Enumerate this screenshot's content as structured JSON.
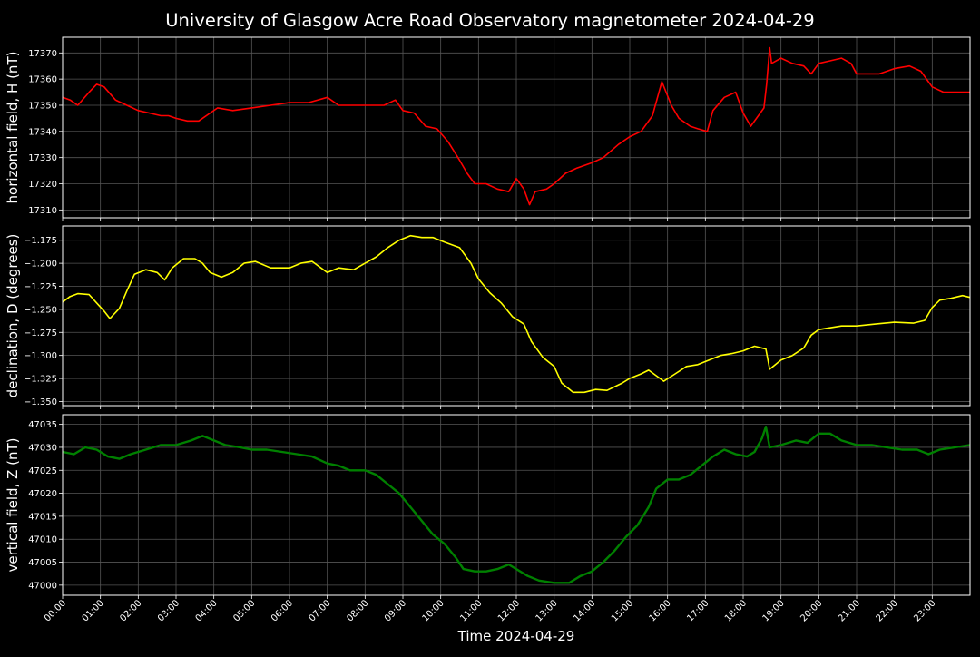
{
  "chart_data": {
    "type": "line",
    "title": "University of Glasgow Acre Road Observatory magnetometer 2024-04-29",
    "xlabel": "Time 2024-04-29",
    "x_unit": "hours",
    "xlim": [
      0,
      24
    ],
    "x_ticks": [
      {
        "value": 0,
        "label": "00:00"
      },
      {
        "value": 1,
        "label": "01:00"
      },
      {
        "value": 2,
        "label": "02:00"
      },
      {
        "value": 3,
        "label": "03:00"
      },
      {
        "value": 4,
        "label": "04:00"
      },
      {
        "value": 5,
        "label": "05:00"
      },
      {
        "value": 6,
        "label": "06:00"
      },
      {
        "value": 7,
        "label": "07:00"
      },
      {
        "value": 8,
        "label": "08:00"
      },
      {
        "value": 9,
        "label": "09:00"
      },
      {
        "value": 10,
        "label": "10:00"
      },
      {
        "value": 11,
        "label": "11:00"
      },
      {
        "value": 12,
        "label": "12:00"
      },
      {
        "value": 13,
        "label": "13:00"
      },
      {
        "value": 14,
        "label": "14:00"
      },
      {
        "value": 15,
        "label": "15:00"
      },
      {
        "value": 16,
        "label": "16:00"
      },
      {
        "value": 17,
        "label": "17:00"
      },
      {
        "value": 18,
        "label": "18:00"
      },
      {
        "value": 19,
        "label": "19:00"
      },
      {
        "value": 20,
        "label": "20:00"
      },
      {
        "value": 21,
        "label": "21:00"
      },
      {
        "value": 22,
        "label": "22:00"
      },
      {
        "value": 23,
        "label": "23:00"
      }
    ],
    "grid": true,
    "colors": {
      "background": "#000000",
      "foreground": "#ffffff",
      "grid": "#555555"
    },
    "panels": [
      {
        "ylabel": "horizontal field, H (nT)",
        "ylim": [
          17307,
          17376
        ],
        "yticks": [
          {
            "value": 17310,
            "label": "17310"
          },
          {
            "value": 17320,
            "label": "17320"
          },
          {
            "value": 17330,
            "label": "17330"
          },
          {
            "value": 17340,
            "label": "17340"
          },
          {
            "value": 17350,
            "label": "17350"
          },
          {
            "value": 17360,
            "label": "17360"
          },
          {
            "value": 17370,
            "label": "17370"
          }
        ],
        "color": "#ff0000",
        "points": [
          [
            0,
            17353
          ],
          [
            0.2,
            17352
          ],
          [
            0.4,
            17350
          ],
          [
            0.7,
            17355
          ],
          [
            0.9,
            17358
          ],
          [
            1.1,
            17357
          ],
          [
            1.4,
            17352
          ],
          [
            1.7,
            17350
          ],
          [
            2.0,
            17348
          ],
          [
            2.3,
            17347
          ],
          [
            2.6,
            17346
          ],
          [
            2.8,
            17346
          ],
          [
            3.0,
            17345
          ],
          [
            3.3,
            17344
          ],
          [
            3.6,
            17344
          ],
          [
            3.9,
            17347
          ],
          [
            4.1,
            17349
          ],
          [
            4.5,
            17348
          ],
          [
            5.0,
            17349
          ],
          [
            5.5,
            17350
          ],
          [
            6.0,
            17351
          ],
          [
            6.5,
            17351
          ],
          [
            7.0,
            17353
          ],
          [
            7.3,
            17350
          ],
          [
            7.6,
            17350
          ],
          [
            8.0,
            17350
          ],
          [
            8.5,
            17350
          ],
          [
            8.8,
            17352
          ],
          [
            9.0,
            17348
          ],
          [
            9.3,
            17347
          ],
          [
            9.6,
            17342
          ],
          [
            9.9,
            17341
          ],
          [
            10.2,
            17336
          ],
          [
            10.5,
            17329
          ],
          [
            10.7,
            17324
          ],
          [
            10.9,
            17320
          ],
          [
            11.2,
            17320
          ],
          [
            11.5,
            17318
          ],
          [
            11.8,
            17317
          ],
          [
            12.0,
            17322
          ],
          [
            12.2,
            17318
          ],
          [
            12.35,
            17312
          ],
          [
            12.5,
            17317
          ],
          [
            12.8,
            17318
          ],
          [
            13.0,
            17320
          ],
          [
            13.3,
            17324
          ],
          [
            13.6,
            17326
          ],
          [
            14.0,
            17328
          ],
          [
            14.3,
            17330
          ],
          [
            14.7,
            17335
          ],
          [
            15.0,
            17338
          ],
          [
            15.3,
            17340
          ],
          [
            15.6,
            17346
          ],
          [
            15.85,
            17359
          ],
          [
            16.1,
            17350
          ],
          [
            16.3,
            17345
          ],
          [
            16.6,
            17342
          ],
          [
            16.8,
            17341
          ],
          [
            17.05,
            17340
          ],
          [
            17.2,
            17348
          ],
          [
            17.5,
            17353
          ],
          [
            17.8,
            17355
          ],
          [
            18.0,
            17347
          ],
          [
            18.2,
            17342
          ],
          [
            18.4,
            17346
          ],
          [
            18.55,
            17349
          ],
          [
            18.62,
            17358
          ],
          [
            18.7,
            17372
          ],
          [
            18.75,
            17366
          ],
          [
            19.0,
            17368
          ],
          [
            19.3,
            17366
          ],
          [
            19.6,
            17365
          ],
          [
            19.8,
            17362
          ],
          [
            20.0,
            17366
          ],
          [
            20.3,
            17367
          ],
          [
            20.6,
            17368
          ],
          [
            20.85,
            17366
          ],
          [
            21.0,
            17362
          ],
          [
            21.3,
            17362
          ],
          [
            21.6,
            17362
          ],
          [
            22.0,
            17364
          ],
          [
            22.4,
            17365
          ],
          [
            22.7,
            17363
          ],
          [
            23.0,
            17357
          ],
          [
            23.3,
            17355
          ],
          [
            23.6,
            17355
          ],
          [
            24.0,
            17355
          ]
        ]
      },
      {
        "ylabel": "declination, D (degrees)",
        "ylim": [
          -1.3545,
          -1.1595
        ],
        "yticks": [
          {
            "value": -1.35,
            "label": "−1.350"
          },
          {
            "value": -1.325,
            "label": "−1.325"
          },
          {
            "value": -1.3,
            "label": "−1.300"
          },
          {
            "value": -1.275,
            "label": "−1.275"
          },
          {
            "value": -1.25,
            "label": "−1.250"
          },
          {
            "value": -1.225,
            "label": "−1.225"
          },
          {
            "value": -1.2,
            "label": "−1.200"
          },
          {
            "value": -1.175,
            "label": "−1.175"
          }
        ],
        "color": "#ffff00",
        "points": [
          [
            0,
            -1.242
          ],
          [
            0.2,
            -1.236
          ],
          [
            0.4,
            -1.233
          ],
          [
            0.7,
            -1.234
          ],
          [
            0.9,
            -1.243
          ],
          [
            1.1,
            -1.252
          ],
          [
            1.25,
            -1.26
          ],
          [
            1.5,
            -1.249
          ],
          [
            1.7,
            -1.23
          ],
          [
            1.9,
            -1.212
          ],
          [
            2.2,
            -1.207
          ],
          [
            2.5,
            -1.21
          ],
          [
            2.7,
            -1.218
          ],
          [
            2.9,
            -1.205
          ],
          [
            3.2,
            -1.195
          ],
          [
            3.5,
            -1.195
          ],
          [
            3.7,
            -1.2
          ],
          [
            3.9,
            -1.21
          ],
          [
            4.2,
            -1.215
          ],
          [
            4.5,
            -1.21
          ],
          [
            4.8,
            -1.2
          ],
          [
            5.1,
            -1.198
          ],
          [
            5.5,
            -1.205
          ],
          [
            6.0,
            -1.205
          ],
          [
            6.3,
            -1.2
          ],
          [
            6.6,
            -1.198
          ],
          [
            7.0,
            -1.21
          ],
          [
            7.3,
            -1.205
          ],
          [
            7.7,
            -1.207
          ],
          [
            8.0,
            -1.2
          ],
          [
            8.3,
            -1.193
          ],
          [
            8.6,
            -1.183
          ],
          [
            8.9,
            -1.175
          ],
          [
            9.2,
            -1.17
          ],
          [
            9.5,
            -1.172
          ],
          [
            9.8,
            -1.172
          ],
          [
            10.1,
            -1.177
          ],
          [
            10.5,
            -1.183
          ],
          [
            10.8,
            -1.2
          ],
          [
            11.0,
            -1.217
          ],
          [
            11.3,
            -1.232
          ],
          [
            11.6,
            -1.243
          ],
          [
            11.9,
            -1.258
          ],
          [
            12.2,
            -1.266
          ],
          [
            12.4,
            -1.285
          ],
          [
            12.7,
            -1.302
          ],
          [
            13.0,
            -1.312
          ],
          [
            13.2,
            -1.33
          ],
          [
            13.5,
            -1.34
          ],
          [
            13.8,
            -1.34
          ],
          [
            14.1,
            -1.337
          ],
          [
            14.4,
            -1.338
          ],
          [
            14.8,
            -1.33
          ],
          [
            15.0,
            -1.325
          ],
          [
            15.3,
            -1.32
          ],
          [
            15.5,
            -1.316
          ],
          [
            15.7,
            -1.322
          ],
          [
            15.9,
            -1.328
          ],
          [
            16.2,
            -1.32
          ],
          [
            16.5,
            -1.312
          ],
          [
            16.8,
            -1.31
          ],
          [
            17.1,
            -1.305
          ],
          [
            17.4,
            -1.3
          ],
          [
            17.7,
            -1.298
          ],
          [
            18.0,
            -1.295
          ],
          [
            18.3,
            -1.29
          ],
          [
            18.6,
            -1.293
          ],
          [
            18.7,
            -1.315
          ],
          [
            19.0,
            -1.305
          ],
          [
            19.3,
            -1.3
          ],
          [
            19.6,
            -1.292
          ],
          [
            19.8,
            -1.278
          ],
          [
            20.0,
            -1.272
          ],
          [
            20.3,
            -1.27
          ],
          [
            20.6,
            -1.268
          ],
          [
            21.0,
            -1.268
          ],
          [
            21.5,
            -1.266
          ],
          [
            22.0,
            -1.264
          ],
          [
            22.5,
            -1.265
          ],
          [
            22.8,
            -1.262
          ],
          [
            23.0,
            -1.248
          ],
          [
            23.2,
            -1.24
          ],
          [
            23.5,
            -1.238
          ],
          [
            23.8,
            -1.235
          ],
          [
            24.0,
            -1.237
          ]
        ]
      },
      {
        "ylabel": "vertical field, Z (nT)",
        "ylim": [
          46997.8,
          47037.1
        ],
        "yticks": [
          {
            "value": 47000,
            "label": "47000"
          },
          {
            "value": 47005,
            "label": "47005"
          },
          {
            "value": 47010,
            "label": "47010"
          },
          {
            "value": 47015,
            "label": "47015"
          },
          {
            "value": 47020,
            "label": "47020"
          },
          {
            "value": 47025,
            "label": "47025"
          },
          {
            "value": 47030,
            "label": "47030"
          },
          {
            "value": 47035,
            "label": "47035"
          }
        ],
        "color": "#008000",
        "points": [
          [
            0,
            47029
          ],
          [
            0.3,
            47028.5
          ],
          [
            0.6,
            47030
          ],
          [
            0.9,
            47029.5
          ],
          [
            1.2,
            47028
          ],
          [
            1.5,
            47027.5
          ],
          [
            1.8,
            47028.5
          ],
          [
            2.2,
            47029.5
          ],
          [
            2.6,
            47030.5
          ],
          [
            3.0,
            47030.5
          ],
          [
            3.4,
            47031.5
          ],
          [
            3.7,
            47032.5
          ],
          [
            4.0,
            47031.5
          ],
          [
            4.3,
            47030.5
          ],
          [
            4.7,
            47030
          ],
          [
            5.0,
            47029.5
          ],
          [
            5.4,
            47029.5
          ],
          [
            5.8,
            47029
          ],
          [
            6.2,
            47028.5
          ],
          [
            6.6,
            47028
          ],
          [
            7.0,
            47026.5
          ],
          [
            7.3,
            47026
          ],
          [
            7.6,
            47025
          ],
          [
            8.0,
            47025
          ],
          [
            8.3,
            47024
          ],
          [
            8.6,
            47022
          ],
          [
            8.9,
            47020
          ],
          [
            9.2,
            47017
          ],
          [
            9.5,
            47014
          ],
          [
            9.8,
            47011
          ],
          [
            10.1,
            47009
          ],
          [
            10.4,
            47006
          ],
          [
            10.6,
            47003.5
          ],
          [
            10.9,
            47003
          ],
          [
            11.2,
            47003
          ],
          [
            11.5,
            47003.5
          ],
          [
            11.8,
            47004.5
          ],
          [
            12.0,
            47003.5
          ],
          [
            12.3,
            47002
          ],
          [
            12.6,
            47001
          ],
          [
            13.0,
            47000.5
          ],
          [
            13.4,
            47000.5
          ],
          [
            13.7,
            47002
          ],
          [
            14.0,
            47003
          ],
          [
            14.3,
            47005
          ],
          [
            14.6,
            47007.5
          ],
          [
            14.9,
            47010.5
          ],
          [
            15.2,
            47013
          ],
          [
            15.5,
            47017
          ],
          [
            15.7,
            47021
          ],
          [
            16.0,
            47023
          ],
          [
            16.3,
            47023
          ],
          [
            16.6,
            47024
          ],
          [
            16.9,
            47026
          ],
          [
            17.2,
            47028
          ],
          [
            17.5,
            47029.5
          ],
          [
            17.8,
            47028.5
          ],
          [
            18.1,
            47028
          ],
          [
            18.3,
            47029
          ],
          [
            18.5,
            47032
          ],
          [
            18.6,
            47034.5
          ],
          [
            18.7,
            47030
          ],
          [
            19.0,
            47030.5
          ],
          [
            19.4,
            47031.5
          ],
          [
            19.7,
            47031
          ],
          [
            20.0,
            47033
          ],
          [
            20.3,
            47033
          ],
          [
            20.6,
            47031.5
          ],
          [
            21.0,
            47030.5
          ],
          [
            21.4,
            47030.5
          ],
          [
            21.8,
            47030
          ],
          [
            22.2,
            47029.5
          ],
          [
            22.6,
            47029.5
          ],
          [
            22.9,
            47028.5
          ],
          [
            23.2,
            47029.5
          ],
          [
            23.6,
            47030
          ],
          [
            24.0,
            47030.5
          ]
        ]
      }
    ]
  }
}
